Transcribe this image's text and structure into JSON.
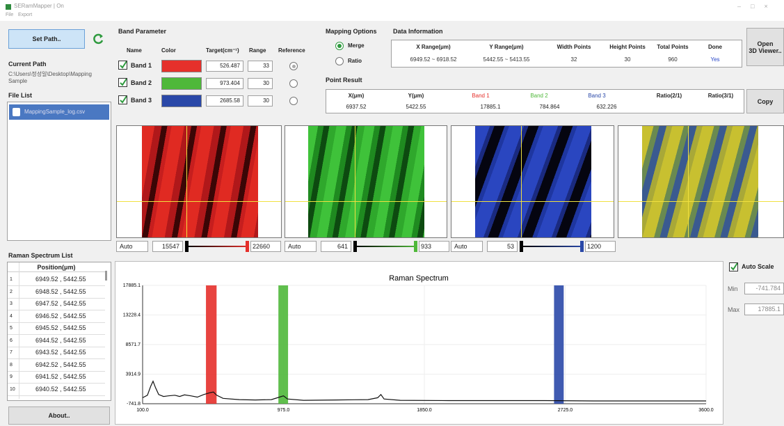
{
  "window": {
    "title": "SERamMapper | On",
    "menu": [
      "File",
      "Export"
    ]
  },
  "left": {
    "set_path": "Set Path..",
    "current_path_label": "Current Path",
    "current_path": "C:\\Users\\정성일\\Desktop\\Mapping Sample",
    "file_list_label": "File List",
    "files": [
      "MappingSample_log.csv"
    ],
    "spectrum_list_label": "Raman Spectrum List",
    "spectrum_list_header": "Position(μm)",
    "spectrum_list": [
      [
        "1",
        "6949.52 , 5442.55"
      ],
      [
        "2",
        "6948.52 , 5442.55"
      ],
      [
        "3",
        "6947.52 , 5442.55"
      ],
      [
        "4",
        "6946.52 , 5442.55"
      ],
      [
        "5",
        "6945.52 , 5442.55"
      ],
      [
        "6",
        "6944.52 , 5442.55"
      ],
      [
        "7",
        "6943.52 , 5442.55"
      ],
      [
        "8",
        "6942.52 , 5442.55"
      ],
      [
        "9",
        "6941.52 , 5442.55"
      ],
      [
        "10",
        "6940.52 , 5442.55"
      ]
    ],
    "about": "About.."
  },
  "band_parameter": {
    "title": "Band Parameter",
    "headers": [
      "Name",
      "Color",
      "Target(cm⁻¹)",
      "Range",
      "Reference"
    ],
    "bands": [
      {
        "name": "Band 1",
        "color": "#e5302b",
        "target": 526.487,
        "range": 33
      },
      {
        "name": "Band 2",
        "color": "#4fb83a",
        "target": 973.404,
        "range": 30
      },
      {
        "name": "Band 3",
        "color": "#2a48a8",
        "target": 2685.58,
        "range": 30
      }
    ]
  },
  "mapping_options": {
    "title": "Mapping Options",
    "options": [
      "Merge",
      "Ratio"
    ]
  },
  "data_information": {
    "title": "Data Information",
    "headers": [
      "X Range(μm)",
      "Y Range(μm)",
      "Width Points",
      "Height Points",
      "Total Points",
      "Done"
    ],
    "values": [
      "6949.52 ~ 6918.52",
      "5442.55 ~ 5413.55",
      "32",
      "30",
      "960",
      "Yes"
    ]
  },
  "open_3d_viewer": [
    "Open",
    "3D Viewer.."
  ],
  "point_result": {
    "title": "Point Result",
    "headers": [
      "X(μm)",
      "Y(μm)",
      "Band 1",
      "Band 2",
      "Band 3",
      "Ratio(2/1)",
      "Ratio(3/1)"
    ],
    "values": [
      "6937.52",
      "5422.55",
      "17885.1",
      "784.864",
      "632.226"
    ]
  },
  "copy": "Copy",
  "image_controls": [
    {
      "mode": "Auto",
      "min": 15547,
      "max": 22660
    },
    {
      "mode": "Auto",
      "min": 641,
      "max": 933
    },
    {
      "mode": "Auto",
      "min": 53,
      "max": 1200
    }
  ],
  "auto_scale": {
    "label": "Auto Scale",
    "min_label": "Min",
    "min": -741.784,
    "max_label": "Max",
    "max": 17885.1
  },
  "chart_data": {
    "type": "line",
    "title": "Raman Spectrum",
    "x": [
      100,
      130,
      150,
      165,
      180,
      200,
      230,
      260,
      300,
      330,
      360,
      400,
      440,
      480,
      520,
      540,
      560,
      600,
      700,
      800,
      900,
      950,
      975,
      1000,
      1100,
      1300,
      1500,
      1560,
      1580,
      1600,
      1700,
      2000,
      2300,
      2600,
      2900,
      3200,
      3600
    ],
    "series": [
      {
        "color": "#111111",
        "values": [
          200,
          600,
          2000,
          2800,
          1800,
          700,
          400,
          500,
          600,
          400,
          650,
          500,
          300,
          700,
          1000,
          1100,
          600,
          100,
          -100,
          -150,
          -100,
          300,
          500,
          0,
          -200,
          -150,
          -100,
          200,
          700,
          0,
          -200,
          -250,
          -250,
          -250,
          -300,
          -300,
          -300
        ]
      }
    ],
    "xlim": [
      100,
      3600
    ],
    "ylim": [
      -741.8,
      17885.1
    ],
    "xticks": [
      {
        "value": 100,
        "label": "100.0"
      },
      {
        "value": 975,
        "label": "975.0"
      },
      {
        "value": 1850,
        "label": "1850.0"
      },
      {
        "value": 2725,
        "label": "2725.0"
      },
      {
        "value": 3600,
        "label": "3600.0"
      }
    ],
    "yticks": [
      -741.8,
      3914.9,
      8571.7,
      13228.4,
      17885.1
    ],
    "grid": true
  }
}
